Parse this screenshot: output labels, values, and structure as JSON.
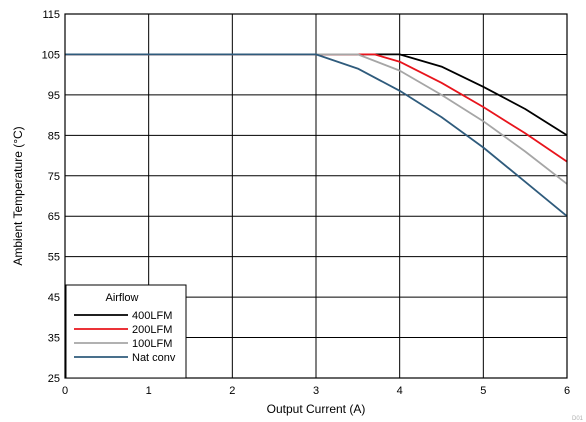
{
  "chart_data": {
    "type": "line",
    "title": "",
    "xlabel": "Output Current (A)",
    "ylabel": "Ambient Temperature (°C)",
    "xlim": [
      0,
      6
    ],
    "ylim": [
      25,
      115
    ],
    "xticks": [
      0,
      1,
      2,
      3,
      4,
      5,
      6
    ],
    "yticks": [
      25,
      35,
      45,
      55,
      65,
      75,
      85,
      95,
      105,
      115
    ],
    "grid": true,
    "legend": {
      "title": "Airflow",
      "placement": "bottom-left"
    },
    "series": [
      {
        "name": "400LFM",
        "color": "#000000",
        "points": [
          [
            0,
            105
          ],
          [
            3,
            105
          ],
          [
            3.9,
            105
          ],
          [
            4,
            105
          ],
          [
            4.5,
            102
          ],
          [
            5,
            97
          ],
          [
            5.5,
            91.5
          ],
          [
            6,
            85
          ]
        ]
      },
      {
        "name": "200LFM",
        "color": "#e8141c",
        "points": [
          [
            0,
            105
          ],
          [
            3,
            105
          ],
          [
            3.7,
            105
          ],
          [
            4,
            103.2
          ],
          [
            4.5,
            98
          ],
          [
            5,
            92
          ],
          [
            5.5,
            85.5
          ],
          [
            6,
            78.5
          ]
        ]
      },
      {
        "name": "100LFM",
        "color": "#a6a6a6",
        "points": [
          [
            0,
            105
          ],
          [
            3,
            105
          ],
          [
            3.5,
            105
          ],
          [
            4,
            101
          ],
          [
            4.5,
            95
          ],
          [
            5,
            88.5
          ],
          [
            5.5,
            81
          ],
          [
            6,
            73
          ]
        ]
      },
      {
        "name": "Nat conv",
        "color": "#2f5b7c",
        "points": [
          [
            0,
            105
          ],
          [
            3,
            105
          ],
          [
            3.5,
            101.5
          ],
          [
            4,
            96
          ],
          [
            4.5,
            89.5
          ],
          [
            5,
            82
          ],
          [
            5.5,
            73.5
          ],
          [
            6,
            65
          ]
        ]
      }
    ],
    "corner_text": "D01"
  }
}
